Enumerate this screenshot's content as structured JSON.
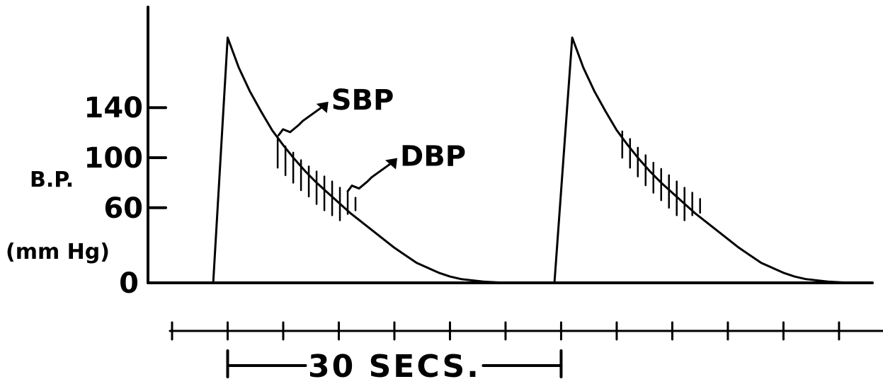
{
  "chart_data": {
    "type": "line",
    "ylabel_line1": "B.P.",
    "ylabel_line2": "(mm Hg)",
    "y_ticks": [
      {
        "value": 0,
        "label": "0"
      },
      {
        "value": 60,
        "label": "60"
      },
      {
        "value": 100,
        "label": "100"
      },
      {
        "value": 140,
        "label": "140"
      }
    ],
    "ylim": [
      0,
      200
    ],
    "xlim": [
      0,
      63
    ],
    "x_tick_values": [
      0,
      5,
      10,
      15,
      20,
      25,
      30,
      35,
      40,
      45,
      50,
      55,
      60
    ],
    "time_span": {
      "start": 5,
      "end": 35,
      "label": "30 SECS."
    },
    "grid": false,
    "legend": "none",
    "series": [
      {
        "x": [
          0,
          3.7,
          5,
          6,
          7,
          8,
          9,
          10,
          11,
          12,
          13,
          14,
          15,
          16,
          17,
          18,
          19,
          20,
          21,
          22,
          23,
          24,
          25,
          26,
          27,
          28,
          29,
          30,
          31,
          32,
          33,
          34,
          34.4,
          36,
          37,
          38,
          39,
          40,
          41,
          42,
          43,
          44,
          45,
          46,
          47,
          48,
          49,
          50,
          51,
          52,
          53,
          54,
          55,
          56,
          57,
          58,
          59,
          60,
          61,
          62,
          63
        ],
        "y": [
          0,
          0,
          196,
          172,
          153,
          137,
          122,
          110,
          99,
          89,
          80,
          72,
          64,
          56,
          49,
          42,
          35,
          28,
          22,
          16,
          12,
          8,
          5,
          3,
          2,
          1,
          0.5,
          0,
          0,
          0,
          0,
          0,
          0,
          196,
          172,
          153,
          137,
          122,
          110,
          99,
          89,
          80,
          72,
          64,
          56,
          49,
          42,
          35,
          28,
          22,
          16,
          12,
          8,
          5,
          3,
          2,
          1,
          0.5,
          0,
          0,
          0
        ]
      }
    ],
    "cuff_oscillations": [
      {
        "x": [
          9.5,
          10.2,
          10.9,
          11.6,
          12.3,
          13.0,
          13.7,
          14.4,
          15.1,
          15.8,
          16.5
        ],
        "top": [
          117,
          109,
          104,
          98,
          93,
          89,
          85,
          81,
          76,
          72,
          68
        ],
        "bottom": [
          92,
          86,
          80,
          74,
          69,
          63,
          58,
          54,
          50,
          55,
          58
        ]
      },
      {
        "x": [
          40.5,
          41.2,
          41.9,
          42.6,
          43.3,
          44.0,
          44.7,
          45.4,
          46.1,
          46.8,
          47.5
        ],
        "top": [
          121,
          115,
          108,
          102,
          96,
          91,
          86,
          81,
          76,
          72,
          67
        ],
        "bottom": [
          100,
          92,
          85,
          78,
          72,
          66,
          60,
          54,
          50,
          54,
          56
        ]
      }
    ],
    "annotations": [
      {
        "label": "SBP",
        "x": 9.6,
        "y": 117
      },
      {
        "label": "DBP",
        "x": 15.8,
        "y": 72
      }
    ]
  }
}
